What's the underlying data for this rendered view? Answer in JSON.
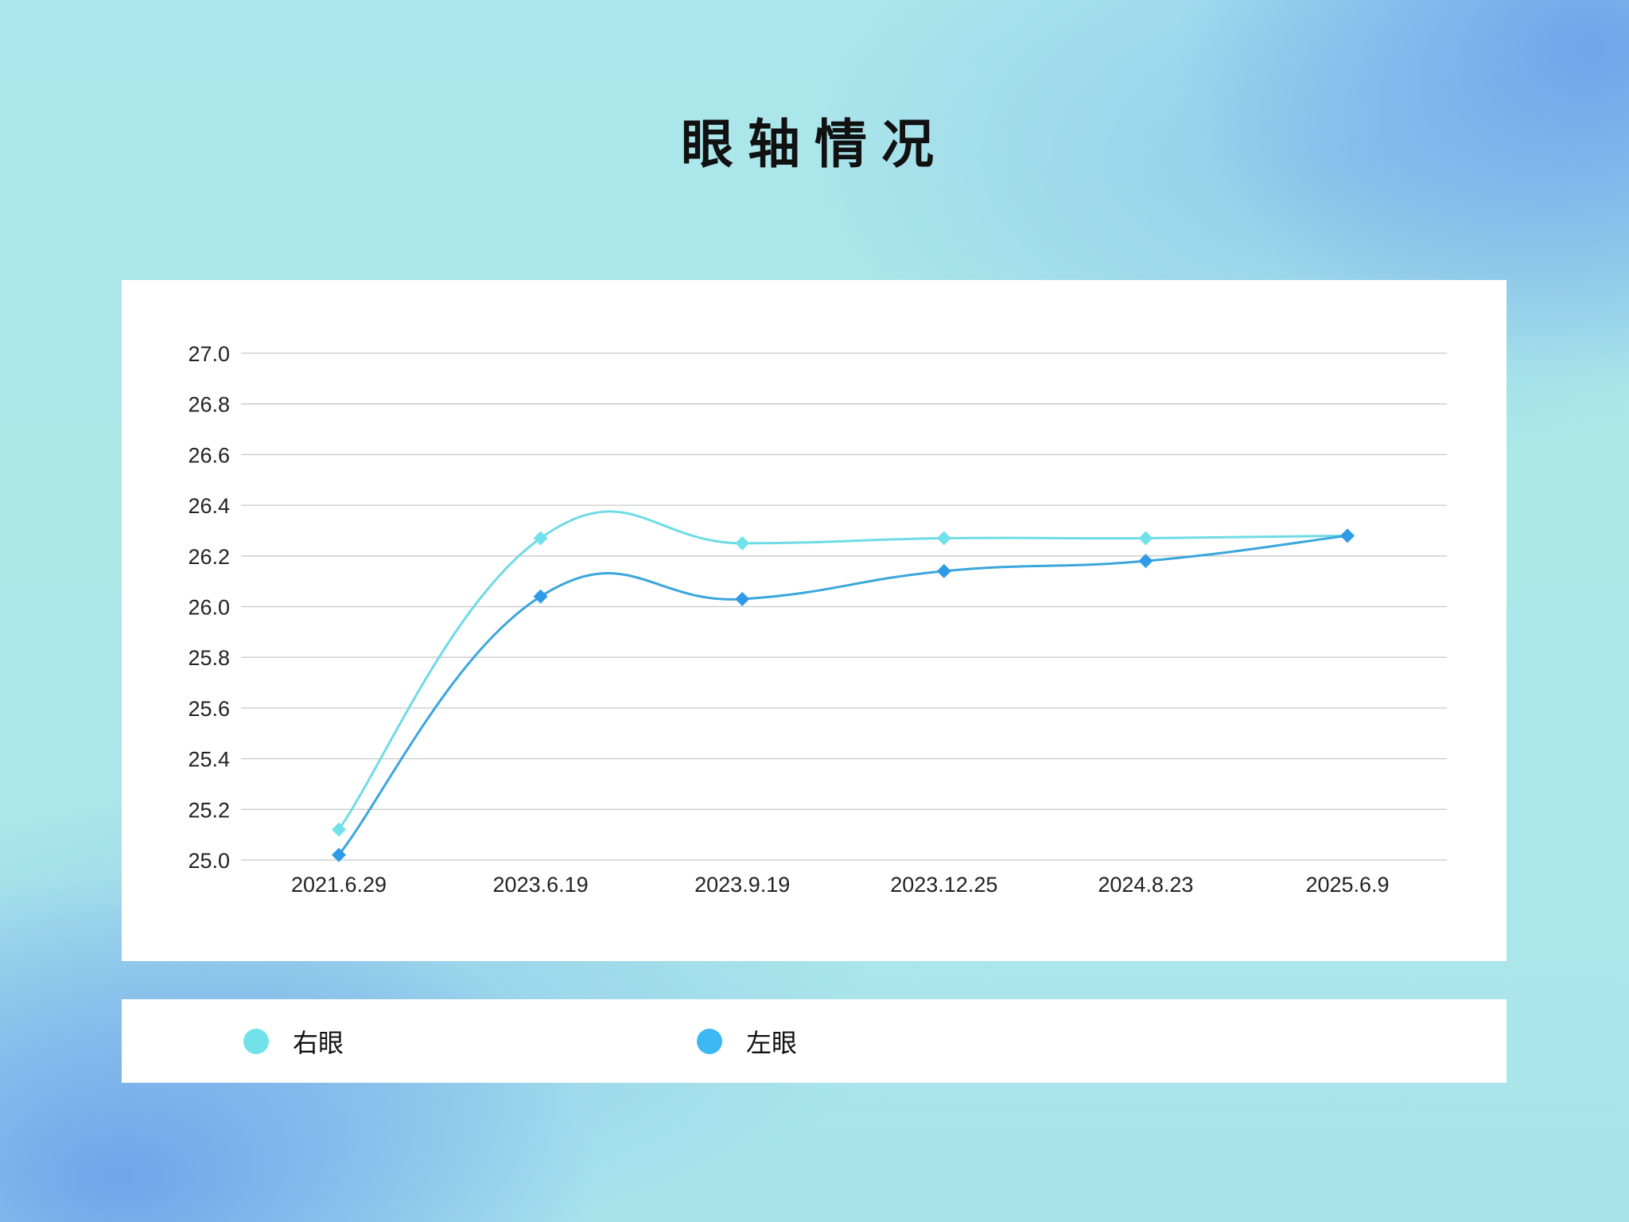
{
  "title": "眼轴情况",
  "colors": {
    "right_eye": "#6fdbe6",
    "left_eye": "#3aa6dc",
    "left_eye_marker": "#2f9be6",
    "legend_right": "#72e2ea",
    "legend_left": "#3db8f5",
    "grid": "#c8c8c8"
  },
  "legend": [
    {
      "label": "右眼",
      "color_key": "legend_right"
    },
    {
      "label": "左眼",
      "color_key": "legend_left"
    }
  ],
  "chart_data": {
    "type": "line",
    "smooth": true,
    "marker": "diamond",
    "categories": [
      "2021.6.29",
      "2023.6.19",
      "2023.9.19",
      "2023.12.25",
      "2024.8.23",
      "2025.6.9"
    ],
    "series": [
      {
        "name": "右眼",
        "values": [
          25.12,
          26.27,
          26.25,
          26.27,
          26.27,
          26.28
        ]
      },
      {
        "name": "左眼",
        "values": [
          25.02,
          26.04,
          26.03,
          26.14,
          26.18,
          26.28
        ]
      }
    ],
    "ylim": [
      25.0,
      27.0
    ],
    "yticks": [
      "25.0",
      "25.2",
      "25.4",
      "25.6",
      "25.8",
      "26.0",
      "26.2",
      "26.4",
      "26.6",
      "26.8",
      "27.0"
    ],
    "grid": true,
    "legend_position": "bottom"
  }
}
